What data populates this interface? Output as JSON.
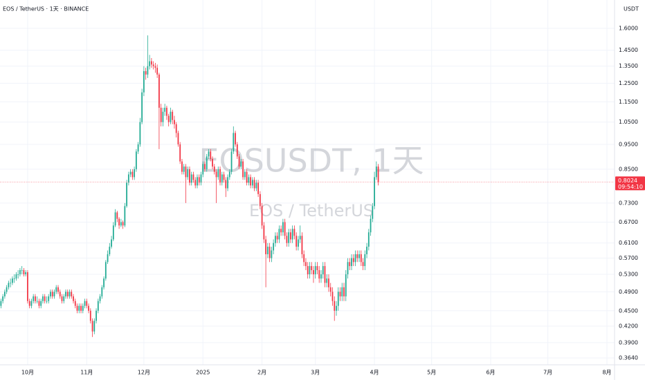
{
  "chart_data": {
    "type": "candlestick",
    "header": "EOS / TetherUS · 1天 · BINANCE",
    "currency": "USDT",
    "watermark": "EOSUSDT, 1天",
    "watermark_subtitle": "EOS / TetherUS",
    "countdown": "09:54:10",
    "up_color": "#22ab94",
    "down_color": "#f23645",
    "log_scale": true,
    "grid": true,
    "ylim": [
      0.353,
      1.817
    ],
    "yticks": [
      {
        "value": 0.364,
        "label": "0.3640"
      },
      {
        "value": 0.39,
        "label": "0.3900"
      },
      {
        "value": 0.42,
        "label": "0.4200"
      },
      {
        "value": 0.45,
        "label": "0.4500"
      },
      {
        "value": 0.49,
        "label": "0.4900"
      },
      {
        "value": 0.53,
        "label": "0.5300"
      },
      {
        "value": 0.57,
        "label": "0.5700"
      },
      {
        "value": 0.61,
        "label": "0.6100"
      },
      {
        "value": 0.67,
        "label": "0.6700"
      },
      {
        "value": 0.73,
        "label": "0.7300"
      },
      {
        "value": 0.85,
        "label": "0.8500"
      },
      {
        "value": 0.95,
        "label": "0.9500"
      },
      {
        "value": 1.05,
        "label": "1.0500"
      },
      {
        "value": 1.15,
        "label": "1.1500"
      },
      {
        "value": 1.25,
        "label": "1.2500"
      },
      {
        "value": 1.35,
        "label": "1.3500"
      },
      {
        "value": 1.45,
        "label": "1.4500"
      },
      {
        "value": 1.6,
        "label": "1.6000"
      }
    ],
    "xlim": [
      -0.5,
      322
    ],
    "xticks": [
      {
        "value": 14,
        "label": "10月"
      },
      {
        "value": 45,
        "label": "11月"
      },
      {
        "value": 75,
        "label": "12月"
      },
      {
        "value": 106,
        "label": "2025"
      },
      {
        "value": 137,
        "label": "2月"
      },
      {
        "value": 165,
        "label": "3月"
      },
      {
        "value": 196,
        "label": "4月"
      },
      {
        "value": 226,
        "label": "5月"
      },
      {
        "value": 257,
        "label": "6月"
      },
      {
        "value": 287,
        "label": "7月"
      },
      {
        "value": 318,
        "label": "8月"
      }
    ],
    "ohlc": [
      [
        0.46,
        0.475,
        0.455,
        0.47
      ],
      [
        0.47,
        0.485,
        0.465,
        0.48
      ],
      [
        0.48,
        0.495,
        0.475,
        0.49
      ],
      [
        0.49,
        0.505,
        0.485,
        0.5
      ],
      [
        0.5,
        0.515,
        0.495,
        0.51
      ],
      [
        0.51,
        0.52,
        0.5,
        0.51
      ],
      [
        0.51,
        0.525,
        0.505,
        0.52
      ],
      [
        0.52,
        0.53,
        0.51,
        0.52
      ],
      [
        0.52,
        0.535,
        0.515,
        0.53
      ],
      [
        0.53,
        0.54,
        0.52,
        0.53
      ],
      [
        0.53,
        0.545,
        0.525,
        0.54
      ],
      [
        0.54,
        0.55,
        0.53,
        0.54
      ],
      [
        0.54,
        0.545,
        0.525,
        0.53
      ],
      [
        0.53,
        0.54,
        0.525,
        0.535
      ],
      [
        0.535,
        0.54,
        0.465,
        0.47
      ],
      [
        0.47,
        0.475,
        0.455,
        0.46
      ],
      [
        0.46,
        0.475,
        0.455,
        0.47
      ],
      [
        0.47,
        0.485,
        0.465,
        0.48
      ],
      [
        0.48,
        0.485,
        0.465,
        0.47
      ],
      [
        0.47,
        0.48,
        0.465,
        0.47
      ],
      [
        0.47,
        0.475,
        0.455,
        0.46
      ],
      [
        0.46,
        0.475,
        0.455,
        0.47
      ],
      [
        0.47,
        0.485,
        0.465,
        0.48
      ],
      [
        0.48,
        0.485,
        0.465,
        0.47
      ],
      [
        0.47,
        0.48,
        0.465,
        0.47
      ],
      [
        0.47,
        0.485,
        0.465,
        0.48
      ],
      [
        0.48,
        0.495,
        0.475,
        0.49
      ],
      [
        0.49,
        0.495,
        0.475,
        0.48
      ],
      [
        0.48,
        0.495,
        0.475,
        0.49
      ],
      [
        0.49,
        0.505,
        0.485,
        0.5
      ],
      [
        0.5,
        0.505,
        0.485,
        0.49
      ],
      [
        0.49,
        0.495,
        0.475,
        0.48
      ],
      [
        0.48,
        0.485,
        0.465,
        0.47
      ],
      [
        0.47,
        0.485,
        0.465,
        0.48
      ],
      [
        0.48,
        0.495,
        0.475,
        0.49
      ],
      [
        0.49,
        0.495,
        0.475,
        0.48
      ],
      [
        0.48,
        0.495,
        0.475,
        0.49
      ],
      [
        0.49,
        0.495,
        0.475,
        0.48
      ],
      [
        0.48,
        0.485,
        0.465,
        0.47
      ],
      [
        0.47,
        0.475,
        0.455,
        0.46
      ],
      [
        0.46,
        0.465,
        0.445,
        0.45
      ],
      [
        0.45,
        0.465,
        0.445,
        0.46
      ],
      [
        0.46,
        0.465,
        0.445,
        0.45
      ],
      [
        0.45,
        0.465,
        0.445,
        0.46
      ],
      [
        0.46,
        0.475,
        0.455,
        0.47
      ],
      [
        0.47,
        0.475,
        0.455,
        0.46
      ],
      [
        0.46,
        0.465,
        0.445,
        0.45
      ],
      [
        0.45,
        0.455,
        0.425,
        0.43
      ],
      [
        0.43,
        0.435,
        0.4,
        0.41
      ],
      [
        0.41,
        0.435,
        0.405,
        0.43
      ],
      [
        0.43,
        0.455,
        0.425,
        0.45
      ],
      [
        0.45,
        0.475,
        0.445,
        0.47
      ],
      [
        0.47,
        0.485,
        0.465,
        0.48
      ],
      [
        0.48,
        0.505,
        0.475,
        0.5
      ],
      [
        0.5,
        0.525,
        0.495,
        0.52
      ],
      [
        0.52,
        0.565,
        0.515,
        0.56
      ],
      [
        0.56,
        0.59,
        0.555,
        0.58
      ],
      [
        0.58,
        0.61,
        0.575,
        0.6
      ],
      [
        0.6,
        0.63,
        0.595,
        0.62
      ],
      [
        0.62,
        0.67,
        0.615,
        0.66
      ],
      [
        0.66,
        0.71,
        0.655,
        0.7
      ],
      [
        0.7,
        0.705,
        0.67,
        0.68
      ],
      [
        0.68,
        0.685,
        0.65,
        0.66
      ],
      [
        0.66,
        0.68,
        0.655,
        0.67
      ],
      [
        0.67,
        0.675,
        0.65,
        0.66
      ],
      [
        0.66,
        0.73,
        0.655,
        0.72
      ],
      [
        0.72,
        0.81,
        0.715,
        0.8
      ],
      [
        0.8,
        0.84,
        0.79,
        0.83
      ],
      [
        0.83,
        0.85,
        0.82,
        0.84
      ],
      [
        0.84,
        0.85,
        0.81,
        0.82
      ],
      [
        0.82,
        0.86,
        0.81,
        0.85
      ],
      [
        0.85,
        0.93,
        0.84,
        0.92
      ],
      [
        0.92,
        0.96,
        0.91,
        0.95
      ],
      [
        0.95,
        1.07,
        0.94,
        1.05
      ],
      [
        1.05,
        1.22,
        1.04,
        1.2
      ],
      [
        1.2,
        1.35,
        1.18,
        1.32
      ],
      [
        1.32,
        1.34,
        1.27,
        1.3
      ],
      [
        1.3,
        1.55,
        1.28,
        1.35
      ],
      [
        1.35,
        1.42,
        1.33,
        1.38
      ],
      [
        1.38,
        1.4,
        1.34,
        1.36
      ],
      [
        1.36,
        1.38,
        1.33,
        1.35
      ],
      [
        1.35,
        1.37,
        1.31,
        1.34
      ],
      [
        1.34,
        1.36,
        1.28,
        1.3
      ],
      [
        1.3,
        1.31,
        0.93,
        1.12
      ],
      [
        1.12,
        1.14,
        1.03,
        1.05
      ],
      [
        1.05,
        1.12,
        1.03,
        1.1
      ],
      [
        1.1,
        1.14,
        1.08,
        1.12
      ],
      [
        1.12,
        1.13,
        1.06,
        1.08
      ],
      [
        1.08,
        1.09,
        1.03,
        1.05
      ],
      [
        1.05,
        1.12,
        1.04,
        1.1
      ],
      [
        1.1,
        1.11,
        1.04,
        1.06
      ],
      [
        1.06,
        1.08,
        1.02,
        1.04
      ],
      [
        1.04,
        1.05,
        0.98,
        1.0
      ],
      [
        1.0,
        1.01,
        0.94,
        0.95
      ],
      [
        0.95,
        0.96,
        0.87,
        0.88
      ],
      [
        0.88,
        0.89,
        0.83,
        0.84
      ],
      [
        0.84,
        0.87,
        0.83,
        0.86
      ],
      [
        0.86,
        0.87,
        0.73,
        0.82
      ],
      [
        0.82,
        0.86,
        0.81,
        0.85
      ],
      [
        0.85,
        0.86,
        0.79,
        0.8
      ],
      [
        0.8,
        0.84,
        0.79,
        0.83
      ],
      [
        0.83,
        0.84,
        0.8,
        0.81
      ],
      [
        0.81,
        0.82,
        0.78,
        0.79
      ],
      [
        0.79,
        0.83,
        0.78,
        0.82
      ],
      [
        0.82,
        0.83,
        0.79,
        0.8
      ],
      [
        0.8,
        0.84,
        0.79,
        0.83
      ],
      [
        0.83,
        0.88,
        0.82,
        0.87
      ],
      [
        0.87,
        0.88,
        0.84,
        0.85
      ],
      [
        0.85,
        0.91,
        0.84,
        0.9
      ],
      [
        0.9,
        0.93,
        0.89,
        0.92
      ],
      [
        0.92,
        0.93,
        0.88,
        0.89
      ],
      [
        0.89,
        0.9,
        0.85,
        0.86
      ],
      [
        0.86,
        0.87,
        0.83,
        0.84
      ],
      [
        0.84,
        0.85,
        0.73,
        0.82
      ],
      [
        0.82,
        0.86,
        0.81,
        0.85
      ],
      [
        0.85,
        0.86,
        0.79,
        0.8
      ],
      [
        0.8,
        0.84,
        0.79,
        0.83
      ],
      [
        0.83,
        0.84,
        0.8,
        0.81
      ],
      [
        0.81,
        0.82,
        0.75,
        0.78
      ],
      [
        0.78,
        0.83,
        0.77,
        0.82
      ],
      [
        0.82,
        0.85,
        0.81,
        0.84
      ],
      [
        0.84,
        0.93,
        0.83,
        0.92
      ],
      [
        0.92,
        1.03,
        0.91,
        1.0
      ],
      [
        1.0,
        1.01,
        0.94,
        0.95
      ],
      [
        0.95,
        0.96,
        0.89,
        0.9
      ],
      [
        0.9,
        0.91,
        0.85,
        0.86
      ],
      [
        0.86,
        0.89,
        0.85,
        0.88
      ],
      [
        0.88,
        0.89,
        0.81,
        0.82
      ],
      [
        0.82,
        0.85,
        0.81,
        0.84
      ],
      [
        0.84,
        0.85,
        0.79,
        0.8
      ],
      [
        0.8,
        0.83,
        0.79,
        0.82
      ],
      [
        0.82,
        0.83,
        0.78,
        0.79
      ],
      [
        0.79,
        0.82,
        0.78,
        0.81
      ],
      [
        0.81,
        0.82,
        0.77,
        0.78
      ],
      [
        0.78,
        0.81,
        0.77,
        0.8
      ],
      [
        0.8,
        0.81,
        0.75,
        0.76
      ],
      [
        0.76,
        0.77,
        0.71,
        0.72
      ],
      [
        0.72,
        0.73,
        0.65,
        0.66
      ],
      [
        0.66,
        0.67,
        0.61,
        0.62
      ],
      [
        0.62,
        0.63,
        0.5,
        0.58
      ],
      [
        0.58,
        0.61,
        0.57,
        0.6
      ],
      [
        0.6,
        0.61,
        0.56,
        0.57
      ],
      [
        0.57,
        0.6,
        0.56,
        0.59
      ],
      [
        0.59,
        0.62,
        0.58,
        0.61
      ],
      [
        0.61,
        0.64,
        0.6,
        0.63
      ],
      [
        0.63,
        0.64,
        0.61,
        0.62
      ],
      [
        0.62,
        0.66,
        0.61,
        0.65
      ],
      [
        0.65,
        0.66,
        0.63,
        0.64
      ],
      [
        0.64,
        0.68,
        0.63,
        0.67
      ],
      [
        0.67,
        0.68,
        0.62,
        0.63
      ],
      [
        0.63,
        0.64,
        0.6,
        0.61
      ],
      [
        0.61,
        0.65,
        0.6,
        0.64
      ],
      [
        0.64,
        0.65,
        0.61,
        0.62
      ],
      [
        0.62,
        0.66,
        0.61,
        0.65
      ],
      [
        0.65,
        0.66,
        0.62,
        0.63
      ],
      [
        0.63,
        0.64,
        0.59,
        0.6
      ],
      [
        0.6,
        0.63,
        0.59,
        0.62
      ],
      [
        0.62,
        0.66,
        0.61,
        0.63
      ],
      [
        0.63,
        0.64,
        0.57,
        0.58
      ],
      [
        0.58,
        0.59,
        0.55,
        0.56
      ],
      [
        0.56,
        0.57,
        0.54,
        0.55
      ],
      [
        0.55,
        0.56,
        0.52,
        0.53
      ],
      [
        0.53,
        0.56,
        0.52,
        0.55
      ],
      [
        0.55,
        0.56,
        0.53,
        0.54
      ],
      [
        0.54,
        0.55,
        0.51,
        0.53
      ],
      [
        0.53,
        0.56,
        0.52,
        0.55
      ],
      [
        0.55,
        0.56,
        0.53,
        0.54
      ],
      [
        0.54,
        0.55,
        0.51,
        0.52
      ],
      [
        0.52,
        0.54,
        0.51,
        0.53
      ],
      [
        0.53,
        0.56,
        0.52,
        0.55
      ],
      [
        0.55,
        0.56,
        0.5,
        0.51
      ],
      [
        0.51,
        0.53,
        0.5,
        0.52
      ],
      [
        0.52,
        0.53,
        0.49,
        0.5
      ],
      [
        0.5,
        0.51,
        0.48,
        0.49
      ],
      [
        0.49,
        0.5,
        0.46,
        0.47
      ],
      [
        0.47,
        0.48,
        0.43,
        0.45
      ],
      [
        0.45,
        0.47,
        0.44,
        0.46
      ],
      [
        0.46,
        0.5,
        0.45,
        0.49
      ],
      [
        0.49,
        0.5,
        0.47,
        0.48
      ],
      [
        0.48,
        0.51,
        0.47,
        0.5
      ],
      [
        0.5,
        0.51,
        0.47,
        0.48
      ],
      [
        0.48,
        0.54,
        0.47,
        0.53
      ],
      [
        0.53,
        0.57,
        0.52,
        0.56
      ],
      [
        0.56,
        0.57,
        0.54,
        0.55
      ],
      [
        0.55,
        0.58,
        0.54,
        0.57
      ],
      [
        0.57,
        0.58,
        0.55,
        0.56
      ],
      [
        0.56,
        0.59,
        0.55,
        0.58
      ],
      [
        0.58,
        0.59,
        0.56,
        0.57
      ],
      [
        0.57,
        0.59,
        0.56,
        0.58
      ],
      [
        0.58,
        0.59,
        0.55,
        0.56
      ],
      [
        0.56,
        0.57,
        0.54,
        0.55
      ],
      [
        0.55,
        0.59,
        0.54,
        0.58
      ],
      [
        0.58,
        0.61,
        0.57,
        0.6
      ],
      [
        0.6,
        0.65,
        0.59,
        0.64
      ],
      [
        0.64,
        0.69,
        0.63,
        0.68
      ],
      [
        0.68,
        0.73,
        0.67,
        0.72
      ],
      [
        0.72,
        0.84,
        0.71,
        0.82
      ],
      [
        0.82,
        0.88,
        0.81,
        0.86
      ],
      [
        0.86,
        0.87,
        0.79,
        0.8024
      ]
    ]
  }
}
